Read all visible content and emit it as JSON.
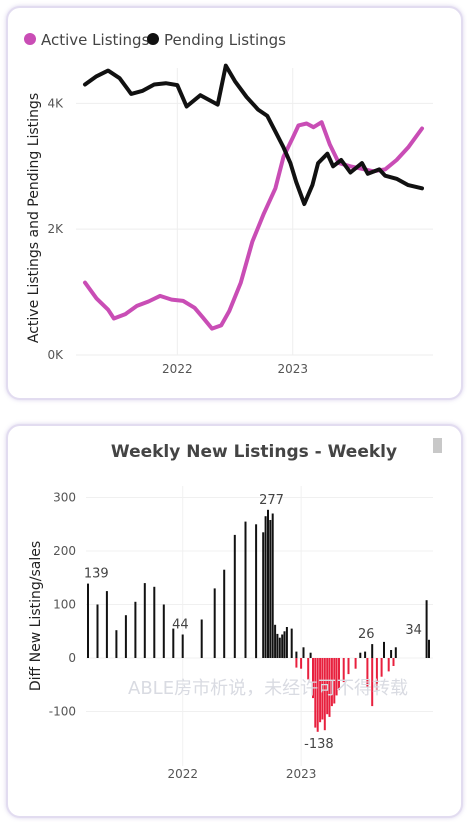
{
  "chart_data": [
    {
      "type": "line",
      "title": "",
      "ylabel": "Active Listings and Pending Listings",
      "ylim": [
        0,
        4800
      ],
      "yticks": [
        "0K",
        "2K",
        "4K"
      ],
      "x_ticks": [
        "2022",
        "2023"
      ],
      "legend": [
        "Active Listings",
        "Pending Listings"
      ],
      "legend_position": "top-left",
      "series": [
        {
          "name": "Active Listings",
          "color": "#c94db5",
          "points": [
            [
              2021.2,
              1150
            ],
            [
              2021.3,
              900
            ],
            [
              2021.4,
              720
            ],
            [
              2021.45,
              580
            ],
            [
              2021.55,
              650
            ],
            [
              2021.65,
              780
            ],
            [
              2021.75,
              850
            ],
            [
              2021.85,
              940
            ],
            [
              2021.95,
              880
            ],
            [
              2022.05,
              860
            ],
            [
              2022.15,
              750
            ],
            [
              2022.22,
              600
            ],
            [
              2022.3,
              420
            ],
            [
              2022.38,
              470
            ],
            [
              2022.45,
              700
            ],
            [
              2022.55,
              1150
            ],
            [
              2022.65,
              1800
            ],
            [
              2022.75,
              2250
            ],
            [
              2022.85,
              2650
            ],
            [
              2022.92,
              3150
            ],
            [
              2023.0,
              3450
            ],
            [
              2023.05,
              3650
            ],
            [
              2023.12,
              3680
            ],
            [
              2023.18,
              3620
            ],
            [
              2023.25,
              3700
            ],
            [
              2023.32,
              3350
            ],
            [
              2023.4,
              3050
            ],
            [
              2023.5,
              3000
            ],
            [
              2023.6,
              2960
            ],
            [
              2023.7,
              2920
            ],
            [
              2023.8,
              2950
            ],
            [
              2023.9,
              3100
            ],
            [
              2024.0,
              3300
            ],
            [
              2024.12,
              3600
            ]
          ]
        },
        {
          "name": "Pending Listings",
          "color": "#111111",
          "points": [
            [
              2021.2,
              4300
            ],
            [
              2021.3,
              4430
            ],
            [
              2021.4,
              4520
            ],
            [
              2021.5,
              4400
            ],
            [
              2021.6,
              4150
            ],
            [
              2021.7,
              4200
            ],
            [
              2021.8,
              4300
            ],
            [
              2021.9,
              4320
            ],
            [
              2022.0,
              4290
            ],
            [
              2022.08,
              3950
            ],
            [
              2022.2,
              4130
            ],
            [
              2022.35,
              3980
            ],
            [
              2022.42,
              4600
            ],
            [
              2022.5,
              4350
            ],
            [
              2022.6,
              4100
            ],
            [
              2022.7,
              3900
            ],
            [
              2022.78,
              3800
            ],
            [
              2022.85,
              3550
            ],
            [
              2022.92,
              3300
            ],
            [
              2022.98,
              3050
            ],
            [
              2023.03,
              2750
            ],
            [
              2023.1,
              2400
            ],
            [
              2023.17,
              2700
            ],
            [
              2023.22,
              3050
            ],
            [
              2023.3,
              3200
            ],
            [
              2023.35,
              3000
            ],
            [
              2023.42,
              3100
            ],
            [
              2023.5,
              2900
            ],
            [
              2023.6,
              3050
            ],
            [
              2023.65,
              2880
            ],
            [
              2023.75,
              2950
            ],
            [
              2023.8,
              2850
            ],
            [
              2023.9,
              2800
            ],
            [
              2024.0,
              2700
            ],
            [
              2024.12,
              2650
            ]
          ]
        }
      ]
    },
    {
      "type": "bar",
      "title": "Weekly New Listings - Weekly",
      "ylabel": "Diff New Listing/sales",
      "ylim": [
        -210,
        340
      ],
      "yticks": [
        300,
        200,
        100,
        0,
        -100
      ],
      "x_ticks": [
        "2022",
        "2023"
      ],
      "data_labels": [
        {
          "text": "139",
          "x": 2021.27,
          "y": 139
        },
        {
          "text": "44",
          "x": 2021.98,
          "y": 44
        },
        {
          "text": "277",
          "x": 2022.75,
          "y": 277
        },
        {
          "text": "-138",
          "x": 2023.15,
          "y": -138
        },
        {
          "text": "26",
          "x": 2023.55,
          "y": 26
        },
        {
          "text": "34",
          "x": 2023.95,
          "y": 34
        }
      ],
      "series": [
        {
          "name": "positive",
          "color": "#111111",
          "points": [
            [
              2021.2,
              139
            ],
            [
              2021.28,
              100
            ],
            [
              2021.36,
              125
            ],
            [
              2021.44,
              52
            ],
            [
              2021.52,
              80
            ],
            [
              2021.6,
              105
            ],
            [
              2021.68,
              140
            ],
            [
              2021.76,
              133
            ],
            [
              2021.84,
              100
            ],
            [
              2021.92,
              55
            ],
            [
              2022.0,
              44
            ],
            [
              2022.16,
              72
            ],
            [
              2022.27,
              130
            ],
            [
              2022.35,
              165
            ],
            [
              2022.44,
              230
            ],
            [
              2022.53,
              255
            ],
            [
              2022.62,
              250
            ],
            [
              2022.68,
              235
            ],
            [
              2022.7,
              265
            ],
            [
              2022.72,
              277
            ],
            [
              2022.74,
              258
            ],
            [
              2022.76,
              270
            ],
            [
              2022.78,
              62
            ],
            [
              2022.8,
              45
            ],
            [
              2022.82,
              38
            ],
            [
              2022.84,
              44
            ],
            [
              2022.86,
              50
            ],
            [
              2022.88,
              58
            ],
            [
              2022.92,
              55
            ],
            [
              2022.96,
              12
            ],
            [
              2023.02,
              20
            ],
            [
              2023.08,
              10
            ],
            [
              2023.5,
              10
            ],
            [
              2023.54,
              12
            ],
            [
              2023.6,
              26
            ],
            [
              2023.7,
              30
            ],
            [
              2023.76,
              15
            ],
            [
              2023.8,
              20
            ],
            [
              2024.06,
              108
            ],
            [
              2024.08,
              34
            ]
          ]
        },
        {
          "name": "negative",
          "color": "#e8203e",
          "points": [
            [
              2022.96,
              -18
            ],
            [
              2023.0,
              -20
            ],
            [
              2023.06,
              -40
            ],
            [
              2023.1,
              -75
            ],
            [
              2023.12,
              -130
            ],
            [
              2023.14,
              -138
            ],
            [
              2023.16,
              -120
            ],
            [
              2023.18,
              -115
            ],
            [
              2023.2,
              -135
            ],
            [
              2023.22,
              -105
            ],
            [
              2023.24,
              -110
            ],
            [
              2023.26,
              -90
            ],
            [
              2023.28,
              -85
            ],
            [
              2023.3,
              -70
            ],
            [
              2023.32,
              -60
            ],
            [
              2023.36,
              -45
            ],
            [
              2023.4,
              -30
            ],
            [
              2023.46,
              -20
            ],
            [
              2023.56,
              -55
            ],
            [
              2023.6,
              -90
            ],
            [
              2023.64,
              -60
            ],
            [
              2023.68,
              -35
            ],
            [
              2023.74,
              -25
            ],
            [
              2023.78,
              -15
            ]
          ]
        }
      ]
    }
  ],
  "watermark": "ABLE房市析说，未经许可不得转载"
}
